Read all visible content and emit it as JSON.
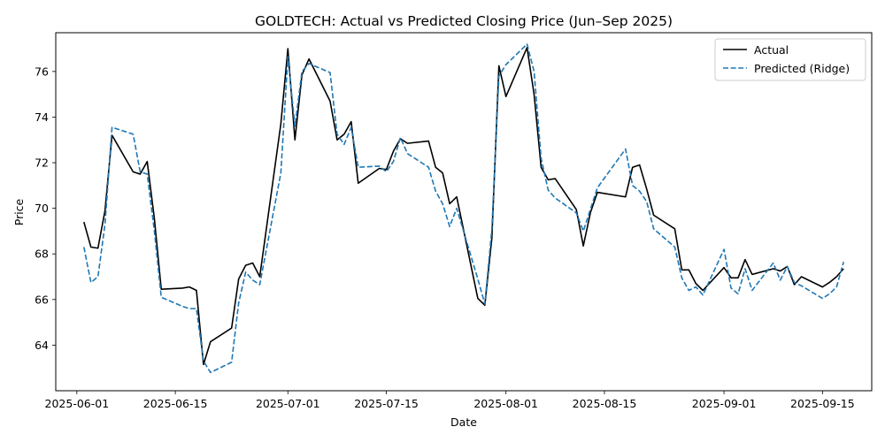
{
  "chart_data": {
    "type": "line",
    "title": "GOLDTECH: Actual vs Predicted Closing Price (Jun–Sep 2025)",
    "xlabel": "Date",
    "ylabel": "Price",
    "xlim": [
      "2025-05-29",
      "2025-09-22"
    ],
    "ylim": [
      62.0,
      77.7
    ],
    "x_ticks": [
      "2025-06-01",
      "2025-06-15",
      "2025-07-01",
      "2025-07-15",
      "2025-08-01",
      "2025-08-15",
      "2025-09-01",
      "2025-09-15"
    ],
    "y_ticks": [
      64,
      66,
      68,
      70,
      72,
      74,
      76
    ],
    "grid": false,
    "legend_position": "top-right",
    "series": [
      {
        "name": "Actual",
        "color": "#000000",
        "style": "solid",
        "points": [
          [
            "2025-06-02",
            69.4
          ],
          [
            "2025-06-03",
            68.3
          ],
          [
            "2025-06-04",
            68.25
          ],
          [
            "2025-06-05",
            69.9
          ],
          [
            "2025-06-06",
            73.2
          ],
          [
            "2025-06-09",
            71.6
          ],
          [
            "2025-06-10",
            71.5
          ],
          [
            "2025-06-11",
            72.05
          ],
          [
            "2025-06-12",
            69.6
          ],
          [
            "2025-06-13",
            66.45
          ],
          [
            "2025-06-16",
            66.5
          ],
          [
            "2025-06-17",
            66.55
          ],
          [
            "2025-06-18",
            66.4
          ],
          [
            "2025-06-19",
            63.15
          ],
          [
            "2025-06-20",
            64.15
          ],
          [
            "2025-06-23",
            64.75
          ],
          [
            "2025-06-24",
            66.9
          ],
          [
            "2025-06-25",
            67.5
          ],
          [
            "2025-06-26",
            67.6
          ],
          [
            "2025-06-27",
            67.0
          ],
          [
            "2025-06-30",
            73.7
          ],
          [
            "2025-07-01",
            77.0
          ],
          [
            "2025-07-02",
            73.0
          ],
          [
            "2025-07-03",
            75.85
          ],
          [
            "2025-07-04",
            76.55
          ],
          [
            "2025-07-07",
            74.7
          ],
          [
            "2025-07-08",
            73.0
          ],
          [
            "2025-07-09",
            73.25
          ],
          [
            "2025-07-10",
            73.8
          ],
          [
            "2025-07-11",
            71.1
          ],
          [
            "2025-07-14",
            71.75
          ],
          [
            "2025-07-15",
            71.7
          ],
          [
            "2025-07-16",
            72.5
          ],
          [
            "2025-07-17",
            73.05
          ],
          [
            "2025-07-18",
            72.85
          ],
          [
            "2025-07-21",
            72.95
          ],
          [
            "2025-07-22",
            71.8
          ],
          [
            "2025-07-23",
            71.55
          ],
          [
            "2025-07-24",
            70.2
          ],
          [
            "2025-07-25",
            70.5
          ],
          [
            "2025-07-28",
            66.05
          ],
          [
            "2025-07-29",
            65.75
          ],
          [
            "2025-07-30",
            68.7
          ],
          [
            "2025-07-31",
            76.25
          ],
          [
            "2025-08-01",
            74.9
          ],
          [
            "2025-08-04",
            77.05
          ],
          [
            "2025-08-05",
            75.0
          ],
          [
            "2025-08-06",
            71.8
          ],
          [
            "2025-08-07",
            71.25
          ],
          [
            "2025-08-08",
            71.3
          ],
          [
            "2025-08-11",
            69.95
          ],
          [
            "2025-08-12",
            68.35
          ],
          [
            "2025-08-13",
            69.8
          ],
          [
            "2025-08-14",
            70.7
          ],
          [
            "2025-08-18",
            70.5
          ],
          [
            "2025-08-19",
            71.8
          ],
          [
            "2025-08-20",
            71.9
          ],
          [
            "2025-08-21",
            70.85
          ],
          [
            "2025-08-22",
            69.7
          ],
          [
            "2025-08-25",
            69.1
          ],
          [
            "2025-08-26",
            67.3
          ],
          [
            "2025-08-27",
            67.3
          ],
          [
            "2025-08-28",
            66.7
          ],
          [
            "2025-08-29",
            66.4
          ],
          [
            "2025-09-01",
            67.4
          ],
          [
            "2025-09-02",
            66.95
          ],
          [
            "2025-09-03",
            66.95
          ],
          [
            "2025-09-04",
            67.75
          ],
          [
            "2025-09-05",
            67.1
          ],
          [
            "2025-09-08",
            67.35
          ],
          [
            "2025-09-09",
            67.25
          ],
          [
            "2025-09-10",
            67.45
          ],
          [
            "2025-09-11",
            66.65
          ],
          [
            "2025-09-12",
            67.0
          ],
          [
            "2025-09-15",
            66.55
          ],
          [
            "2025-09-16",
            66.75
          ],
          [
            "2025-09-17",
            67.0
          ],
          [
            "2025-09-18",
            67.35
          ]
        ]
      },
      {
        "name": "Predicted (Ridge)",
        "color": "#1f77b4",
        "style": "dashed",
        "points": [
          [
            "2025-06-02",
            68.3
          ],
          [
            "2025-06-03",
            66.75
          ],
          [
            "2025-06-04",
            67.0
          ],
          [
            "2025-06-05",
            69.3
          ],
          [
            "2025-06-06",
            73.55
          ],
          [
            "2025-06-09",
            73.25
          ],
          [
            "2025-06-10",
            71.6
          ],
          [
            "2025-06-11",
            71.5
          ],
          [
            "2025-06-12",
            69.05
          ],
          [
            "2025-06-13",
            66.1
          ],
          [
            "2025-06-16",
            65.7
          ],
          [
            "2025-06-17",
            65.6
          ],
          [
            "2025-06-18",
            65.6
          ],
          [
            "2025-06-19",
            63.3
          ],
          [
            "2025-06-20",
            62.8
          ],
          [
            "2025-06-23",
            63.25
          ],
          [
            "2025-06-24",
            65.85
          ],
          [
            "2025-06-25",
            67.2
          ],
          [
            "2025-06-26",
            66.85
          ],
          [
            "2025-06-27",
            66.65
          ],
          [
            "2025-06-30",
            71.55
          ],
          [
            "2025-07-01",
            76.65
          ],
          [
            "2025-07-02",
            73.6
          ],
          [
            "2025-07-03",
            76.0
          ],
          [
            "2025-07-04",
            76.35
          ],
          [
            "2025-07-07",
            75.95
          ],
          [
            "2025-07-08",
            73.25
          ],
          [
            "2025-07-09",
            72.8
          ],
          [
            "2025-07-10",
            73.55
          ],
          [
            "2025-07-11",
            71.8
          ],
          [
            "2025-07-14",
            71.85
          ],
          [
            "2025-07-15",
            71.6
          ],
          [
            "2025-07-16",
            72.05
          ],
          [
            "2025-07-17",
            73.1
          ],
          [
            "2025-07-18",
            72.4
          ],
          [
            "2025-07-21",
            71.8
          ],
          [
            "2025-07-22",
            70.75
          ],
          [
            "2025-07-23",
            70.2
          ],
          [
            "2025-07-24",
            69.2
          ],
          [
            "2025-07-25",
            70.0
          ],
          [
            "2025-07-28",
            66.9
          ],
          [
            "2025-07-29",
            65.8
          ],
          [
            "2025-07-30",
            69.1
          ],
          [
            "2025-07-31",
            75.8
          ],
          [
            "2025-08-01",
            76.3
          ],
          [
            "2025-08-04",
            77.2
          ],
          [
            "2025-08-05",
            76.0
          ],
          [
            "2025-08-06",
            72.2
          ],
          [
            "2025-08-07",
            70.8
          ],
          [
            "2025-08-08",
            70.45
          ],
          [
            "2025-08-11",
            69.8
          ],
          [
            "2025-08-12",
            69.0
          ],
          [
            "2025-08-13",
            69.95
          ],
          [
            "2025-08-14",
            70.9
          ],
          [
            "2025-08-18",
            72.6
          ],
          [
            "2025-08-19",
            71.0
          ],
          [
            "2025-08-20",
            70.75
          ],
          [
            "2025-08-21",
            70.3
          ],
          [
            "2025-08-22",
            69.1
          ],
          [
            "2025-08-25",
            68.3
          ],
          [
            "2025-08-26",
            66.95
          ],
          [
            "2025-08-27",
            66.4
          ],
          [
            "2025-08-28",
            66.55
          ],
          [
            "2025-08-29",
            66.2
          ],
          [
            "2025-09-01",
            68.2
          ],
          [
            "2025-09-02",
            66.5
          ],
          [
            "2025-09-03",
            66.25
          ],
          [
            "2025-09-04",
            67.35
          ],
          [
            "2025-09-05",
            66.4
          ],
          [
            "2025-09-08",
            67.6
          ],
          [
            "2025-09-09",
            66.85
          ],
          [
            "2025-09-10",
            67.45
          ],
          [
            "2025-09-11",
            66.75
          ],
          [
            "2025-09-12",
            66.6
          ],
          [
            "2025-09-15",
            66.05
          ],
          [
            "2025-09-16",
            66.25
          ],
          [
            "2025-09-17",
            66.55
          ],
          [
            "2025-09-18",
            67.65
          ]
        ]
      }
    ]
  }
}
